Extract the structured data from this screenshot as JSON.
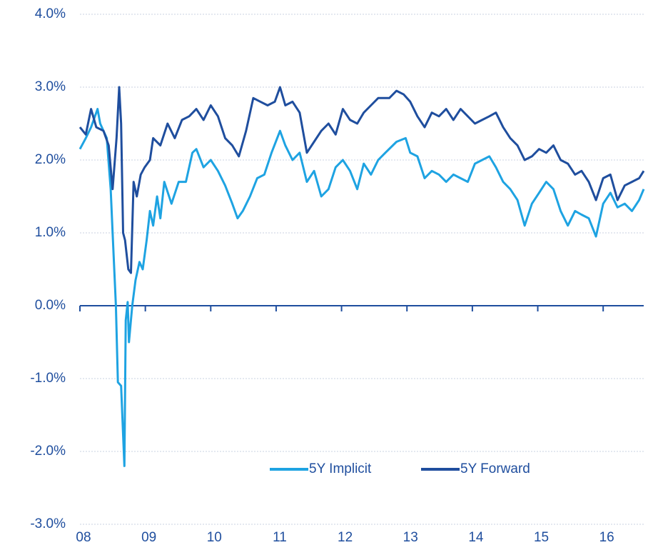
{
  "chart_data": {
    "type": "line",
    "xlim": [
      2008,
      2016.62
    ],
    "xticks": [
      {
        "value": 2008,
        "label": "08"
      },
      {
        "value": 2009,
        "label": "09"
      },
      {
        "value": 2010,
        "label": "10"
      },
      {
        "value": 2011,
        "label": "11"
      },
      {
        "value": 2012,
        "label": "12"
      },
      {
        "value": 2013,
        "label": "13"
      },
      {
        "value": 2014,
        "label": "14"
      },
      {
        "value": 2015,
        "label": "15"
      },
      {
        "value": 2016,
        "label": "16"
      }
    ],
    "ylim": [
      -3,
      4
    ],
    "yticks": [
      {
        "value": -3,
        "label": "-3.0%"
      },
      {
        "value": -2,
        "label": "-2.0%"
      },
      {
        "value": -1,
        "label": "-1.0%"
      },
      {
        "value": 0,
        "label": "0.0%"
      },
      {
        "value": 1,
        "label": "1.0%"
      },
      {
        "value": 2,
        "label": "2.0%"
      },
      {
        "value": 3,
        "label": "3.0%"
      },
      {
        "value": 4,
        "label": "4.0%"
      }
    ],
    "grid": true,
    "legend": "lower center",
    "series": [
      {
        "name": "5Y Implicit",
        "color": "#1ea3e2",
        "x": [
          2008.0,
          2008.09,
          2008.17,
          2008.27,
          2008.31,
          2008.41,
          2008.47,
          2008.5,
          2008.55,
          2008.58,
          2008.63,
          2008.68,
          2008.7,
          2008.73,
          2008.75,
          2008.8,
          2008.85,
          2008.91,
          2008.96,
          2009.02,
          2009.07,
          2009.12,
          2009.18,
          2009.23,
          2009.29,
          2009.4,
          2009.51,
          2009.62,
          2009.72,
          2009.78,
          2009.89,
          2010.0,
          2010.11,
          2010.22,
          2010.33,
          2010.41,
          2010.49,
          2010.6,
          2010.71,
          2010.82,
          2010.93,
          2011.06,
          2011.14,
          2011.25,
          2011.36,
          2011.47,
          2011.58,
          2011.69,
          2011.8,
          2011.91,
          2012.02,
          2012.13,
          2012.24,
          2012.34,
          2012.45,
          2012.56,
          2012.67,
          2012.84,
          2012.98,
          2013.05,
          2013.16,
          2013.27,
          2013.38,
          2013.49,
          2013.6,
          2013.71,
          2013.82,
          2013.93,
          2014.04,
          2014.15,
          2014.26,
          2014.36,
          2014.47,
          2014.58,
          2014.69,
          2014.8,
          2014.91,
          2015.02,
          2015.13,
          2015.24,
          2015.35,
          2015.46,
          2015.57,
          2015.67,
          2015.78,
          2015.89,
          2016.0,
          2016.11,
          2016.22,
          2016.33,
          2016.44,
          2016.55,
          2016.62
        ],
        "values": [
          2.15,
          2.3,
          2.45,
          2.7,
          2.5,
          2.3,
          1.6,
          1.0,
          0.0,
          -1.05,
          -1.1,
          -2.2,
          -0.2,
          0.05,
          -0.5,
          0.0,
          0.35,
          0.6,
          0.5,
          0.9,
          1.3,
          1.1,
          1.5,
          1.2,
          1.7,
          1.4,
          1.7,
          1.7,
          2.1,
          2.15,
          1.9,
          2.0,
          1.85,
          1.65,
          1.4,
          1.2,
          1.3,
          1.5,
          1.75,
          1.8,
          2.1,
          2.4,
          2.2,
          2.0,
          2.1,
          1.7,
          1.85,
          1.5,
          1.6,
          1.9,
          2.0,
          1.85,
          1.6,
          1.95,
          1.8,
          2.0,
          2.1,
          2.25,
          2.3,
          2.1,
          2.05,
          1.75,
          1.85,
          1.8,
          1.7,
          1.8,
          1.75,
          1.7,
          1.95,
          2.0,
          2.05,
          1.9,
          1.7,
          1.6,
          1.45,
          1.1,
          1.4,
          1.55,
          1.7,
          1.6,
          1.3,
          1.1,
          1.3,
          1.25,
          1.2,
          0.95,
          1.4,
          1.55,
          1.35,
          1.4,
          1.3,
          1.45,
          1.6
        ]
      },
      {
        "name": "5Y Forward",
        "color": "#1f4e9e",
        "x": [
          2008.0,
          2008.09,
          2008.17,
          2008.25,
          2008.36,
          2008.44,
          2008.5,
          2008.56,
          2008.6,
          2008.63,
          2008.66,
          2008.69,
          2008.74,
          2008.78,
          2008.82,
          2008.87,
          2008.93,
          2008.99,
          2009.07,
          2009.12,
          2009.23,
          2009.34,
          2009.45,
          2009.56,
          2009.67,
          2009.78,
          2009.89,
          2010.0,
          2010.11,
          2010.22,
          2010.33,
          2010.43,
          2010.54,
          2010.65,
          2010.76,
          2010.87,
          2010.98,
          2011.06,
          2011.14,
          2011.25,
          2011.36,
          2011.47,
          2011.58,
          2011.69,
          2011.8,
          2011.91,
          2012.02,
          2012.13,
          2012.24,
          2012.34,
          2012.45,
          2012.56,
          2012.73,
          2012.84,
          2012.95,
          2013.05,
          2013.16,
          2013.27,
          2013.38,
          2013.49,
          2013.6,
          2013.71,
          2013.82,
          2013.93,
          2014.04,
          2014.15,
          2014.26,
          2014.36,
          2014.47,
          2014.58,
          2014.69,
          2014.8,
          2014.91,
          2015.02,
          2015.13,
          2015.24,
          2015.35,
          2015.46,
          2015.57,
          2015.67,
          2015.78,
          2015.89,
          2016.0,
          2016.11,
          2016.22,
          2016.33,
          2016.44,
          2016.55,
          2016.62
        ],
        "values": [
          2.45,
          2.35,
          2.7,
          2.45,
          2.4,
          2.2,
          1.6,
          2.3,
          3.0,
          2.5,
          1.0,
          0.9,
          0.5,
          0.45,
          1.7,
          1.5,
          1.8,
          1.9,
          2.0,
          2.3,
          2.2,
          2.5,
          2.3,
          2.55,
          2.6,
          2.7,
          2.55,
          2.75,
          2.6,
          2.3,
          2.2,
          2.05,
          2.4,
          2.85,
          2.8,
          2.75,
          2.8,
          3.0,
          2.75,
          2.8,
          2.65,
          2.1,
          2.25,
          2.4,
          2.5,
          2.35,
          2.7,
          2.55,
          2.5,
          2.65,
          2.75,
          2.85,
          2.85,
          2.95,
          2.9,
          2.8,
          2.6,
          2.45,
          2.65,
          2.6,
          2.7,
          2.55,
          2.7,
          2.6,
          2.5,
          2.55,
          2.6,
          2.65,
          2.45,
          2.3,
          2.2,
          2.0,
          2.05,
          2.15,
          2.1,
          2.2,
          2.0,
          1.95,
          1.8,
          1.85,
          1.7,
          1.45,
          1.75,
          1.8,
          1.45,
          1.65,
          1.7,
          1.75,
          1.85
        ]
      }
    ]
  }
}
